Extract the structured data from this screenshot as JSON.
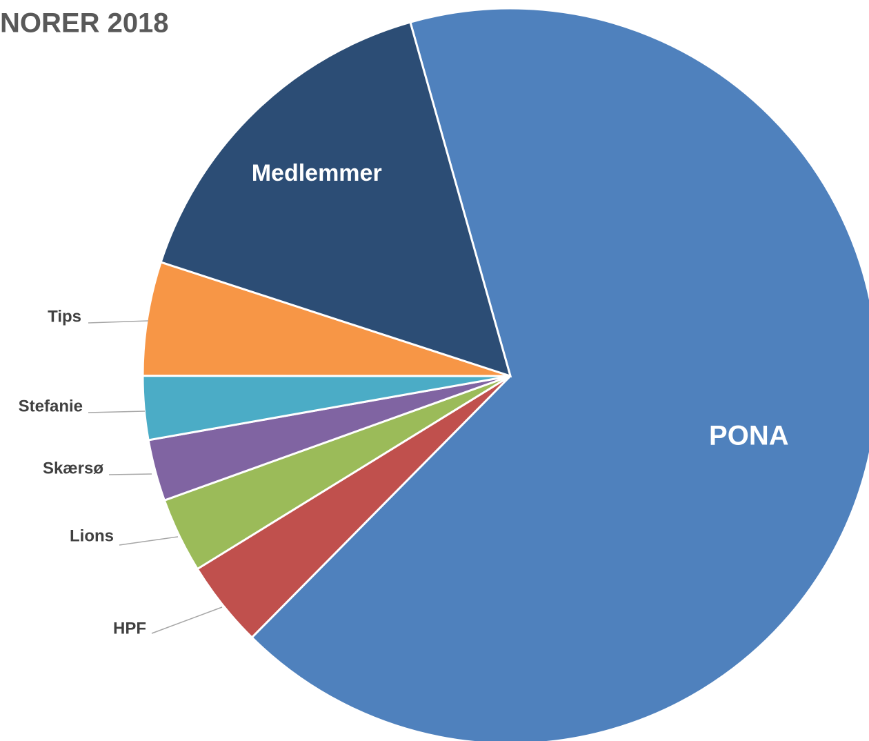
{
  "chart_data": {
    "type": "pie",
    "title": "NORER 2018",
    "categories": [
      "PONA",
      "HPF",
      "Lions",
      "Skærsø",
      "Stefanie",
      "Tips",
      "Medlemmer"
    ],
    "values": [
      66.8,
      3.8,
      3.3,
      2.7,
      2.8,
      5.0,
      15.6
    ],
    "colors": [
      "#4f81bd",
      "#c0504d",
      "#9bbb59",
      "#8064a2",
      "#4bacc6",
      "#f79646",
      "#2c4d75"
    ]
  }
}
